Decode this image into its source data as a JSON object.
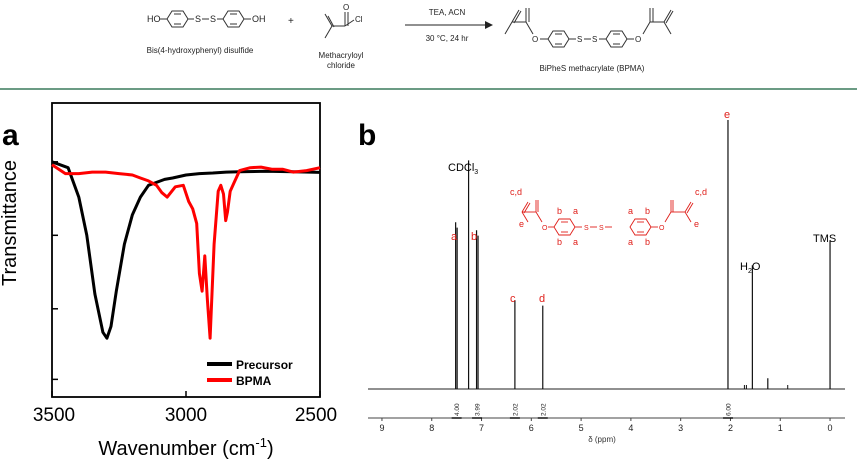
{
  "scheme": {
    "reactant1_label": "Bis(4-hydroxyphenyl) disulfide",
    "reactant2_label_line1": "Methacryloyl",
    "reactant2_label_line2": "chloride",
    "product_label": "BiPheS methacrylate (BPMA)",
    "plus": "+",
    "conditions_top": "TEA, ACN",
    "conditions_bottom": "30 °C, 24 hr",
    "atoms": {
      "HO": "HO",
      "OH": "OH",
      "S": "S",
      "O": "O",
      "Cl": "Cl"
    }
  },
  "panel_labels": {
    "a": "a",
    "b": "b"
  },
  "chart_data": [
    {
      "type": "line",
      "panel": "a",
      "xlabel": "Wavenumber (cm",
      "xlabel_sup": "-1",
      "xlabel_close": ")",
      "ylabel": "Transmittance",
      "xlim": [
        3500,
        2500
      ],
      "x_ticks": [
        "3500",
        "3000",
        "2500"
      ],
      "y_ticks_shown_unlabeled": true,
      "legend_position": "bottom-right",
      "colors": {
        "Precursor": "#000000",
        "BPMA": "#ff0000"
      },
      "series": [
        {
          "name": "Precursor",
          "x": [
            3500,
            3440,
            3400,
            3370,
            3340,
            3310,
            3295,
            3280,
            3260,
            3230,
            3200,
            3170,
            3140,
            3110,
            3080,
            3050,
            3000,
            2950,
            2900,
            2850,
            2800,
            2700,
            2600,
            2500
          ],
          "y": [
            0.8,
            0.78,
            0.68,
            0.55,
            0.35,
            0.22,
            0.2,
            0.24,
            0.36,
            0.52,
            0.62,
            0.68,
            0.72,
            0.73,
            0.74,
            0.745,
            0.755,
            0.76,
            0.762,
            0.765,
            0.766,
            0.768,
            0.766,
            0.764
          ]
        },
        {
          "name": "BPMA",
          "x": [
            3500,
            3450,
            3400,
            3350,
            3300,
            3250,
            3200,
            3170,
            3140,
            3110,
            3090,
            3070,
            3040,
            3010,
            2990,
            2975,
            2960,
            2950,
            2940,
            2930,
            2920,
            2910,
            2895,
            2880,
            2870,
            2860,
            2852,
            2845,
            2835,
            2820,
            2800,
            2760,
            2720,
            2680,
            2640,
            2600,
            2550,
            2500
          ],
          "y": [
            0.79,
            0.76,
            0.76,
            0.765,
            0.765,
            0.76,
            0.755,
            0.745,
            0.735,
            0.72,
            0.695,
            0.68,
            0.715,
            0.72,
            0.665,
            0.64,
            0.59,
            0.42,
            0.36,
            0.48,
            0.33,
            0.2,
            0.52,
            0.7,
            0.72,
            0.69,
            0.6,
            0.63,
            0.7,
            0.73,
            0.77,
            0.78,
            0.782,
            0.775,
            0.775,
            0.765,
            0.77,
            0.78
          ]
        }
      ]
    },
    {
      "type": "line",
      "panel": "b",
      "xlabel": "δ (ppm)",
      "xlim": [
        9.2,
        -0.2
      ],
      "x_ticks": [
        "9",
        "8",
        "7",
        "6",
        "5",
        "4",
        "3",
        "2",
        "1",
        "0"
      ],
      "peaks": [
        {
          "label": "a",
          "ppm": 7.52,
          "height": 0.62
        },
        {
          "label": "a",
          "ppm": 7.49,
          "height": 0.6
        },
        {
          "label": "",
          "ppm": 7.26,
          "height": 0.85
        },
        {
          "label": "b",
          "ppm": 7.1,
          "height": 0.59
        },
        {
          "label": "b",
          "ppm": 7.07,
          "height": 0.57
        },
        {
          "label": "c",
          "ppm": 6.33,
          "height": 0.33
        },
        {
          "label": "d",
          "ppm": 5.77,
          "height": 0.31
        },
        {
          "label": "e",
          "ppm": 2.05,
          "height": 1.0
        },
        {
          "label": "",
          "ppm": 1.56,
          "height": 0.46
        },
        {
          "label": "",
          "ppm": 1.25,
          "height": 0.04
        },
        {
          "label": "",
          "ppm": 0.0,
          "height": 0.55
        }
      ],
      "annotations": {
        "cdcl3": "CDCl",
        "cdcl3_sub": "3",
        "water": "H",
        "water_sub": "2",
        "water_end": "O",
        "tms": "TMS",
        "peak_a": "a",
        "peak_b": "b",
        "peak_c": "c",
        "peak_d": "d",
        "peak_e": "e"
      },
      "integrals": [
        {
          "ppm": 7.5,
          "value": "4.00"
        },
        {
          "ppm": 7.09,
          "value": "3.99"
        },
        {
          "ppm": 6.33,
          "value": "2.02"
        },
        {
          "ppm": 5.77,
          "value": "2.02"
        },
        {
          "ppm": 2.05,
          "value": "6.00"
        }
      ],
      "structure_labels": {
        "cd_left": "c,d",
        "cd_right": "c,d",
        "e_left": "e",
        "e_right": "e",
        "ring_left": [
          "b",
          "a",
          "b",
          "a"
        ],
        "ring_right": [
          "a",
          "b",
          "a",
          "b"
        ],
        "S": "S",
        "O": "O"
      },
      "structure_color": "#e0201b"
    }
  ]
}
